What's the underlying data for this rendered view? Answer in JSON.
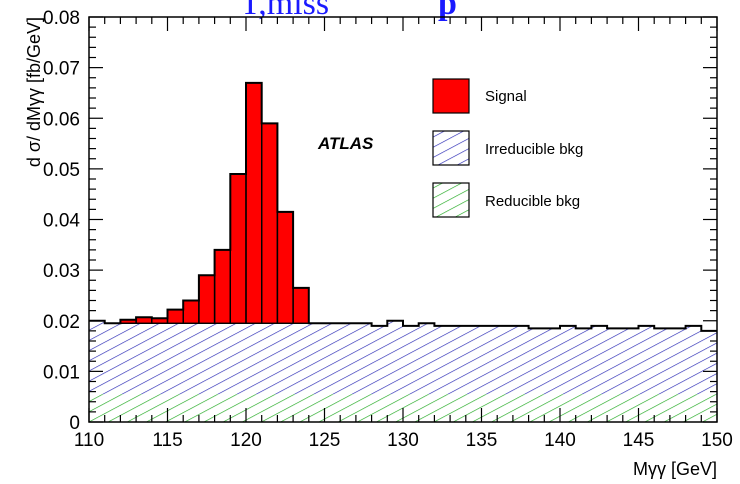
{
  "header_fragment": {
    "text_left": "T,miss",
    "text_right": "p"
  },
  "colors": {
    "signal": "#ff0000",
    "irreducible_hatch": "#2b2bb5",
    "reducible_hatch": "#22aa22",
    "header_text": "#1a1aff"
  },
  "chart_data": {
    "type": "area",
    "title": "",
    "xlabel": "Mγγ [GeV]",
    "ylabel": "d σ/ dMγγ [fb/GeV]",
    "xlim": [
      110,
      150
    ],
    "ylim": [
      0,
      0.08
    ],
    "x_ticks": [
      "110",
      "115",
      "120",
      "125",
      "130",
      "135",
      "140",
      "145",
      "150"
    ],
    "y_ticks": [
      "0",
      "0.01",
      "0.02",
      "0.03",
      "0.04",
      "0.05",
      "0.06",
      "0.07",
      "0.08"
    ],
    "annotation": "ATLAS",
    "legend": {
      "placement": "top-right",
      "entries": [
        {
          "label": "Signal",
          "style": "solid-red"
        },
        {
          "label": "Irreducible bkg",
          "style": "hatch-blue"
        },
        {
          "label": "Reducible bkg",
          "style": "hatch-green"
        }
      ]
    },
    "bin_edges": [
      110,
      111,
      112,
      113,
      114,
      115,
      116,
      117,
      118,
      119,
      120,
      121,
      122,
      123,
      124,
      125,
      126,
      127,
      128,
      129,
      130,
      131,
      132,
      133,
      134,
      135,
      136,
      137,
      138,
      139,
      140,
      141,
      142,
      143,
      144,
      145,
      146,
      147,
      148,
      149,
      150
    ],
    "series": [
      {
        "name": "Reducible bkg",
        "values": [
          0.0055,
          0.0055,
          0.0055,
          0.0055,
          0.0055,
          0.0055,
          0.0055,
          0.0055,
          0.0055,
          0.0055,
          0.0055,
          0.0055,
          0.0055,
          0.0055,
          0.0055,
          0.0055,
          0.0055,
          0.0055,
          0.0055,
          0.0055,
          0.0055,
          0.0055,
          0.0055,
          0.0055,
          0.0055,
          0.0055,
          0.0055,
          0.0055,
          0.0055,
          0.0055,
          0.0055,
          0.0055,
          0.0055,
          0.0055,
          0.0055,
          0.0055,
          0.0055,
          0.0055,
          0.0055,
          0.0055
        ]
      },
      {
        "name": "Irreducible bkg",
        "values": [
          0.0145,
          0.014,
          0.014,
          0.014,
          0.014,
          0.014,
          0.014,
          0.014,
          0.014,
          0.014,
          0.014,
          0.014,
          0.014,
          0.014,
          0.014,
          0.014,
          0.014,
          0.014,
          0.0135,
          0.0145,
          0.0135,
          0.014,
          0.0135,
          0.0135,
          0.0135,
          0.0135,
          0.0135,
          0.0135,
          0.013,
          0.013,
          0.0135,
          0.013,
          0.0135,
          0.013,
          0.013,
          0.0135,
          0.013,
          0.013,
          0.0135,
          0.0125
        ]
      },
      {
        "name": "Signal",
        "values": [
          0.0,
          0.0,
          0.0007,
          0.0012,
          0.001,
          0.0027,
          0.0045,
          0.0095,
          0.0145,
          0.0295,
          0.0475,
          0.0395,
          0.022,
          0.007,
          0.0,
          0.0,
          0.0,
          0.0,
          0.0,
          0.0,
          0.0,
          0.0,
          0.0,
          0.0,
          0.0,
          0.0,
          0.0,
          0.0,
          0.0,
          0.0,
          0.0,
          0.0,
          0.0,
          0.0,
          0.0,
          0.0,
          0.0,
          0.0,
          0.0,
          0.0
        ]
      }
    ]
  }
}
